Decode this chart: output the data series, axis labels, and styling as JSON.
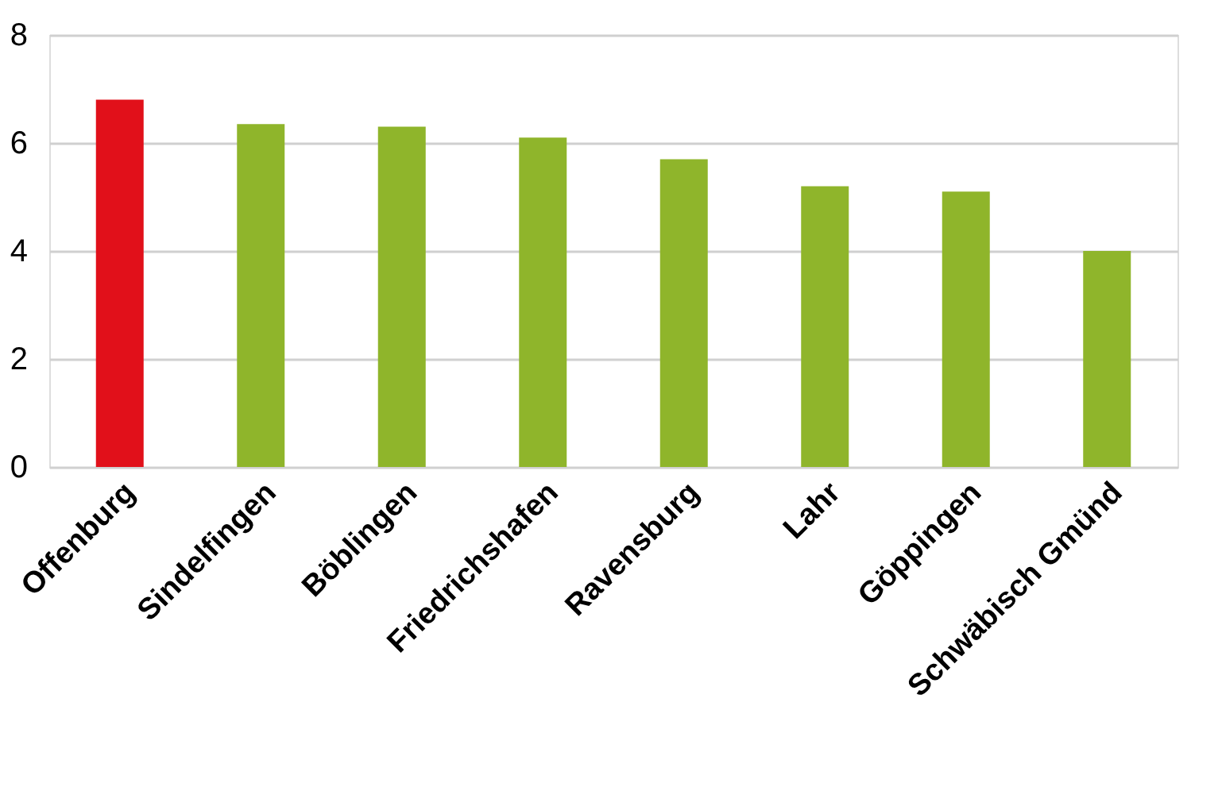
{
  "chart_data": {
    "type": "bar",
    "categories": [
      "Offenburg",
      "Sindelfingen",
      "Böblingen",
      "Friedrichshafen",
      "Ravensburg",
      "Lahr",
      "Göppingen",
      "Schwäbisch Gmünd"
    ],
    "values": [
      6.8,
      6.35,
      6.3,
      6.1,
      5.7,
      5.2,
      5.1,
      4.0
    ],
    "colors": [
      "#e1101a",
      "#8fb52b",
      "#8fb52b",
      "#8fb52b",
      "#8fb52b",
      "#8fb52b",
      "#8fb52b",
      "#8fb52b"
    ],
    "ylim": [
      0,
      8
    ],
    "yticks": [
      0,
      2,
      4,
      6,
      8
    ],
    "grid": "y"
  }
}
